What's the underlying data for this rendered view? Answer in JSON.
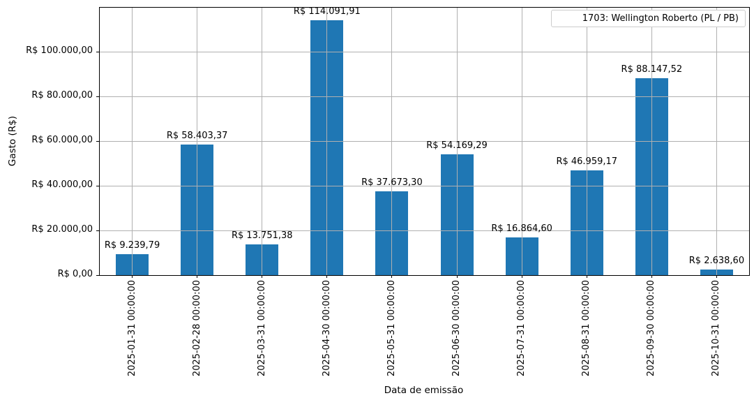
{
  "chart_data": {
    "type": "bar",
    "title": "",
    "xlabel": "Data de emissão",
    "ylabel": "Gasto (R$)",
    "categories": [
      "2025-01-31 00:00:00",
      "2025-02-28 00:00:00",
      "2025-03-31 00:00:00",
      "2025-04-30 00:00:00",
      "2025-05-31 00:00:00",
      "2025-06-30 00:00:00",
      "2025-07-31 00:00:00",
      "2025-08-31 00:00:00",
      "2025-09-30 00:00:00",
      "2025-10-31 00:00:00"
    ],
    "values": [
      9239.79,
      58403.37,
      13751.38,
      114091.91,
      37673.3,
      54169.29,
      16864.6,
      46959.17,
      88147.52,
      2638.6
    ],
    "bar_labels": [
      "R$ 9.239,79",
      "R$ 58.403,37",
      "R$ 13.751,38",
      "R$ 114.091,91",
      "R$ 37.673,30",
      "R$ 54.169,29",
      "R$ 16.864,60",
      "R$ 46.959,17",
      "R$ 88.147,52",
      "R$ 2.638,60"
    ],
    "y_ticks": [
      {
        "value": 0,
        "label": "R$ 0,00"
      },
      {
        "value": 20000,
        "label": "R$ 20.000,00"
      },
      {
        "value": 40000,
        "label": "R$ 40.000,00"
      },
      {
        "value": 60000,
        "label": "R$ 60.000,00"
      },
      {
        "value": 80000,
        "label": "R$ 80.000,00"
      },
      {
        "value": 100000,
        "label": "R$ 100.000,00"
      }
    ],
    "ylim": [
      0,
      119800
    ],
    "grid": true,
    "legend": {
      "label": "1703: Wellington Roberto (PL / PB)",
      "position": "upper right"
    },
    "bar_color": "#1f77b4",
    "grid_color": "#b0b0b0"
  }
}
